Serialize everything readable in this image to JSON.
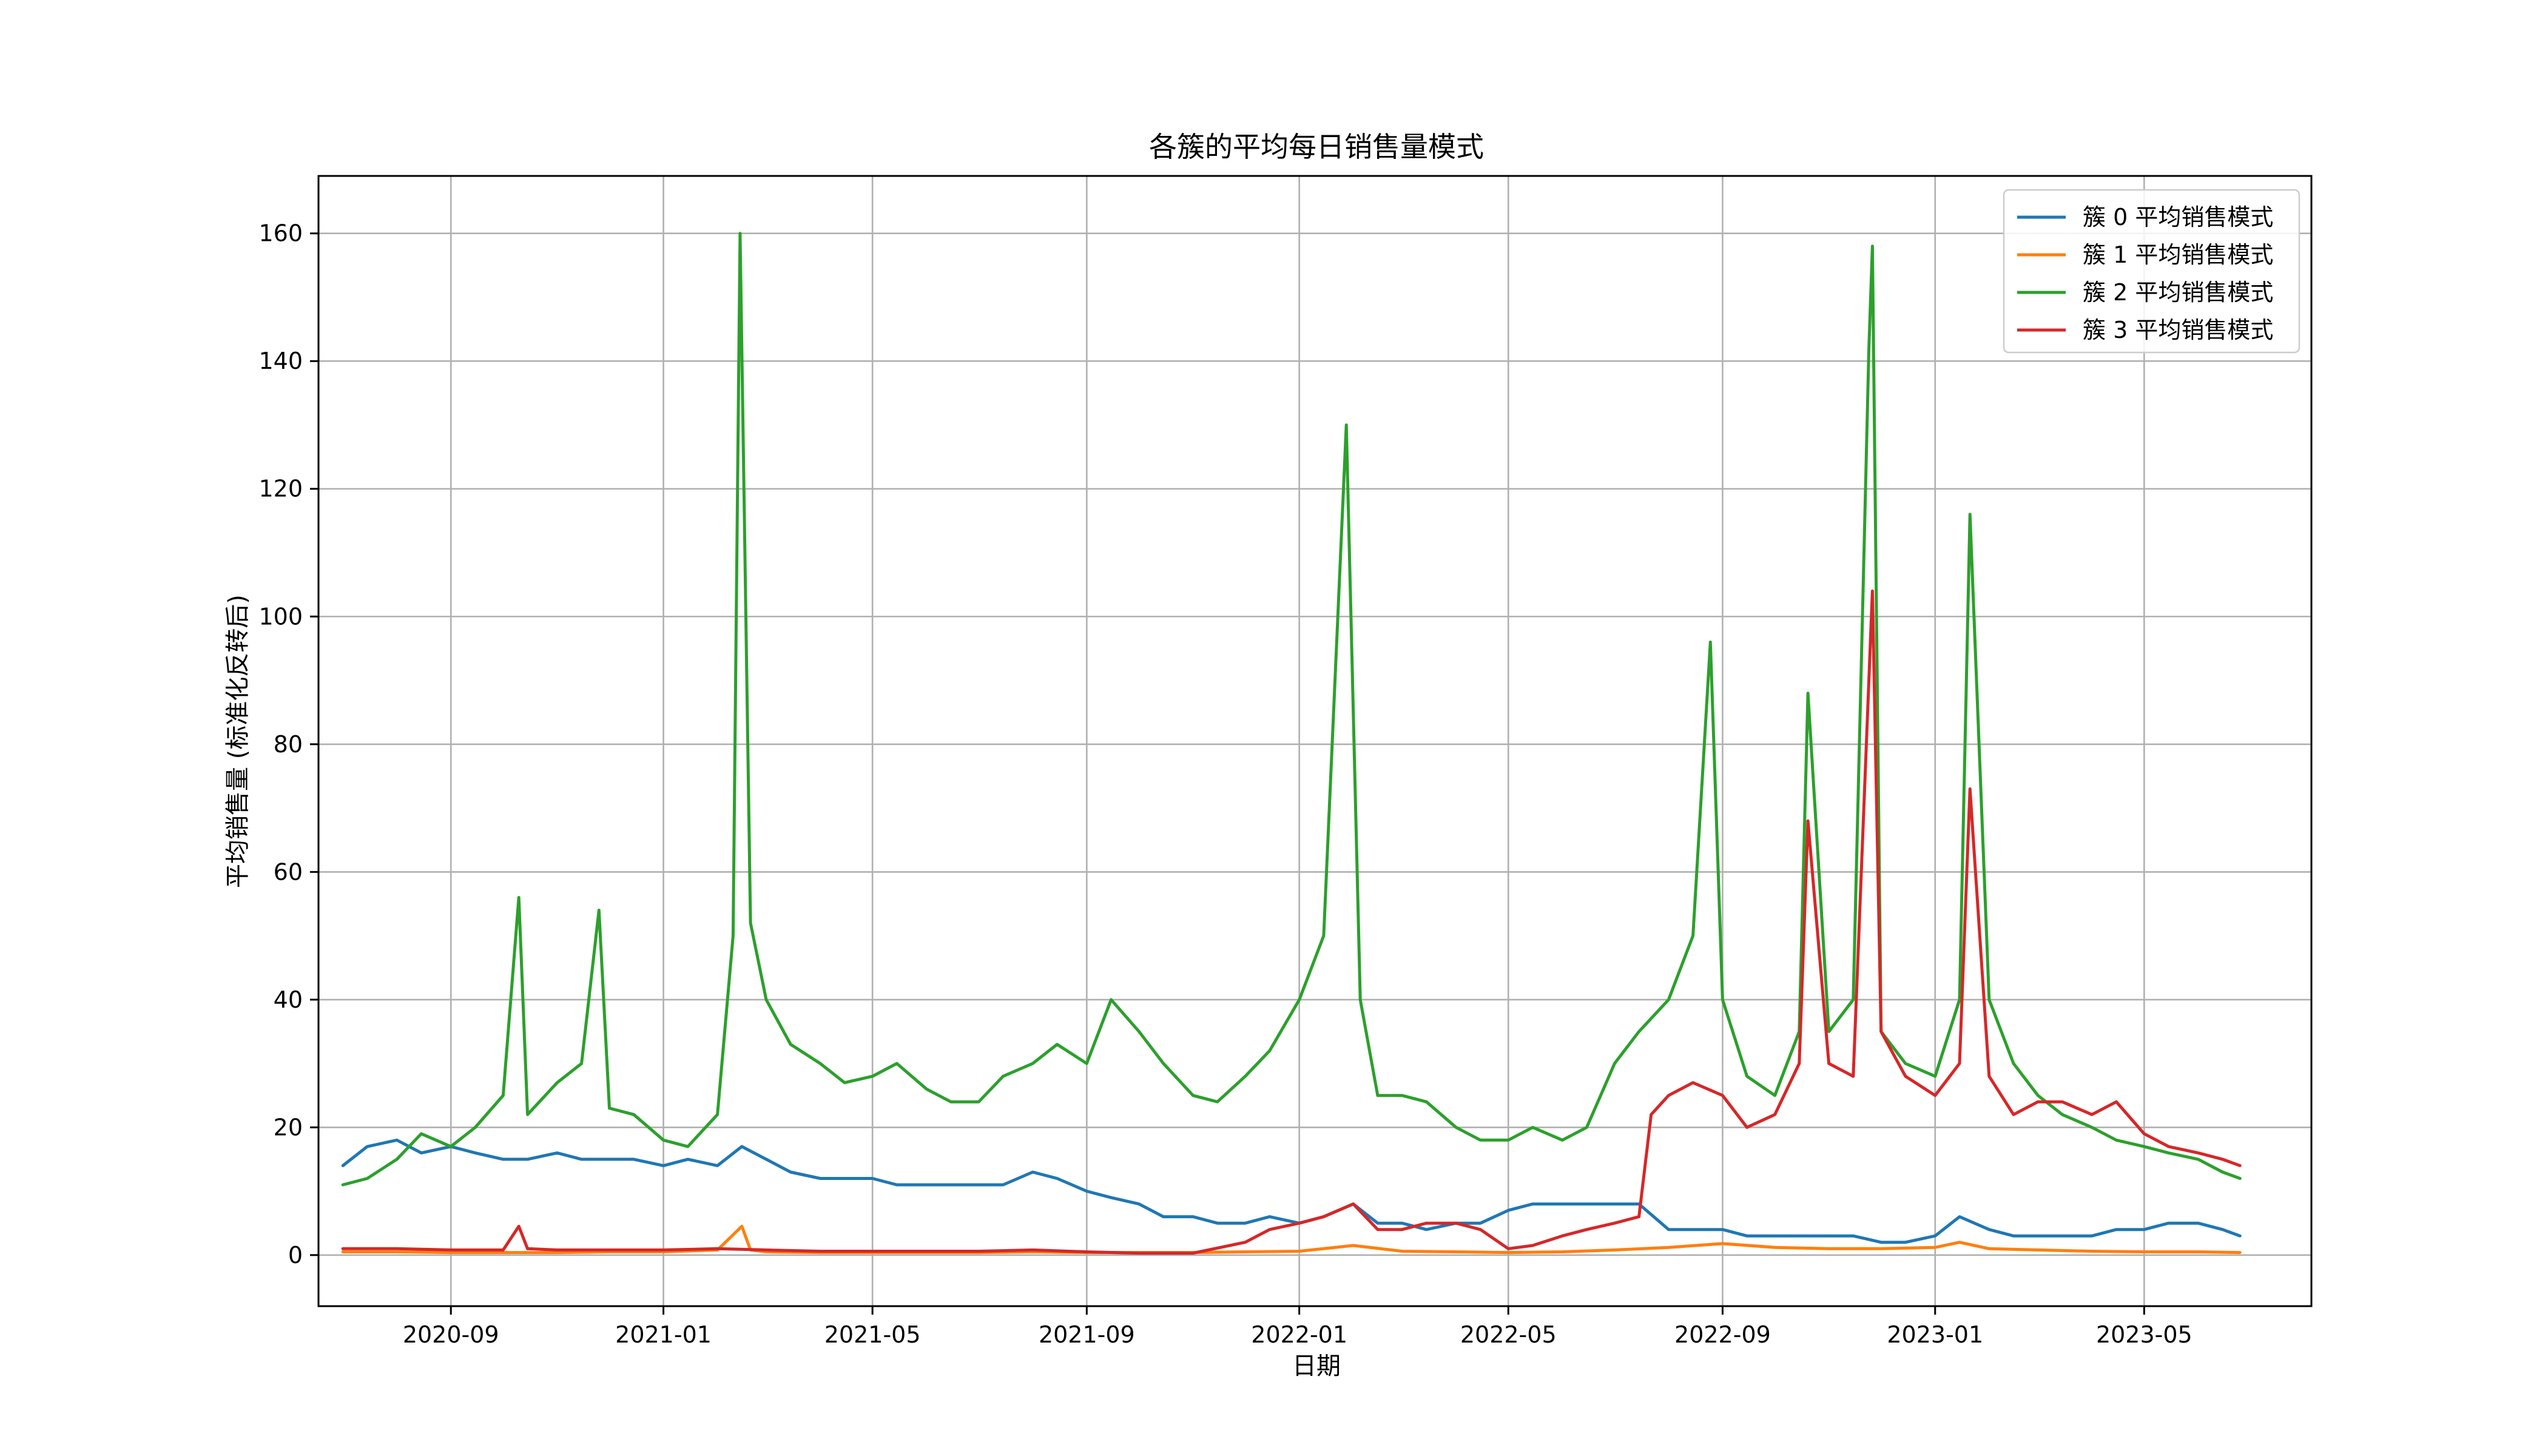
{
  "chart_data": {
    "type": "line",
    "title": "各簇的平均每日销售量模式",
    "xlabel": "日期",
    "ylabel": "平均销售量 (标准化反转后)",
    "x_range": [
      "2020-06-17",
      "2023-08-05"
    ],
    "ylim": [
      -8,
      169
    ],
    "x_ticks": [
      "2020-09",
      "2021-01",
      "2021-05",
      "2021-09",
      "2022-01",
      "2022-05",
      "2022-09",
      "2023-01",
      "2023-05"
    ],
    "x_tick_dates": [
      "2020-09-01",
      "2021-01-01",
      "2021-05-01",
      "2021-09-01",
      "2022-01-01",
      "2022-05-01",
      "2022-09-01",
      "2023-01-01",
      "2023-05-01"
    ],
    "y_ticks": [
      0,
      20,
      40,
      60,
      80,
      100,
      120,
      140,
      160
    ],
    "grid": true,
    "legend_position": "top-right",
    "series": [
      {
        "name": "簇 0 平均销售模式",
        "color": "#1f77b4",
        "points": [
          [
            "2020-07-01",
            14
          ],
          [
            "2020-07-15",
            17
          ],
          [
            "2020-08-01",
            18
          ],
          [
            "2020-08-15",
            16
          ],
          [
            "2020-09-01",
            17
          ],
          [
            "2020-09-15",
            16
          ],
          [
            "2020-10-01",
            15
          ],
          [
            "2020-10-15",
            15
          ],
          [
            "2020-11-01",
            16
          ],
          [
            "2020-11-15",
            15
          ],
          [
            "2020-12-01",
            15
          ],
          [
            "2020-12-15",
            15
          ],
          [
            "2021-01-01",
            14
          ],
          [
            "2021-01-15",
            15
          ],
          [
            "2021-02-01",
            14
          ],
          [
            "2021-02-15",
            17
          ],
          [
            "2021-03-01",
            15
          ],
          [
            "2021-03-15",
            13
          ],
          [
            "2021-04-01",
            12
          ],
          [
            "2021-04-15",
            12
          ],
          [
            "2021-05-01",
            12
          ],
          [
            "2021-05-15",
            11
          ],
          [
            "2021-06-01",
            11
          ],
          [
            "2021-06-15",
            11
          ],
          [
            "2021-07-01",
            11
          ],
          [
            "2021-07-15",
            11
          ],
          [
            "2021-08-01",
            13
          ],
          [
            "2021-08-15",
            12
          ],
          [
            "2021-09-01",
            10
          ],
          [
            "2021-09-15",
            9
          ],
          [
            "2021-10-01",
            8
          ],
          [
            "2021-10-15",
            6
          ],
          [
            "2021-11-01",
            6
          ],
          [
            "2021-11-15",
            5
          ],
          [
            "2021-12-01",
            5
          ],
          [
            "2021-12-15",
            6
          ],
          [
            "2022-01-01",
            5
          ],
          [
            "2022-01-15",
            6
          ],
          [
            "2022-02-01",
            8
          ],
          [
            "2022-02-15",
            5
          ],
          [
            "2022-03-01",
            5
          ],
          [
            "2022-03-15",
            4
          ],
          [
            "2022-04-01",
            5
          ],
          [
            "2022-04-15",
            5
          ],
          [
            "2022-05-01",
            7
          ],
          [
            "2022-05-15",
            8
          ],
          [
            "2022-06-01",
            8
          ],
          [
            "2022-06-15",
            8
          ],
          [
            "2022-07-01",
            8
          ],
          [
            "2022-07-15",
            8
          ],
          [
            "2022-08-01",
            4
          ],
          [
            "2022-08-15",
            4
          ],
          [
            "2022-09-01",
            4
          ],
          [
            "2022-09-15",
            3
          ],
          [
            "2022-10-01",
            3
          ],
          [
            "2022-10-15",
            3
          ],
          [
            "2022-11-01",
            3
          ],
          [
            "2022-11-15",
            3
          ],
          [
            "2022-12-01",
            2
          ],
          [
            "2022-12-15",
            2
          ],
          [
            "2023-01-01",
            3
          ],
          [
            "2023-01-15",
            6
          ],
          [
            "2023-02-01",
            4
          ],
          [
            "2023-02-15",
            3
          ],
          [
            "2023-03-01",
            3
          ],
          [
            "2023-03-15",
            3
          ],
          [
            "2023-04-01",
            3
          ],
          [
            "2023-04-15",
            4
          ],
          [
            "2023-05-01",
            4
          ],
          [
            "2023-05-15",
            5
          ],
          [
            "2023-06-01",
            5
          ],
          [
            "2023-06-15",
            4
          ],
          [
            "2023-06-25",
            3
          ]
        ]
      },
      {
        "name": "簇 1 平均销售模式",
        "color": "#ff7f0e",
        "points": [
          [
            "2020-07-01",
            0.5
          ],
          [
            "2020-08-01",
            0.5
          ],
          [
            "2020-09-01",
            0.4
          ],
          [
            "2020-10-01",
            0.4
          ],
          [
            "2020-11-01",
            0.4
          ],
          [
            "2020-12-01",
            0.5
          ],
          [
            "2021-01-01",
            0.5
          ],
          [
            "2021-02-01",
            0.8
          ],
          [
            "2021-02-15",
            4.5
          ],
          [
            "2021-02-20",
            0.8
          ],
          [
            "2021-03-01",
            0.5
          ],
          [
            "2021-04-01",
            0.4
          ],
          [
            "2021-05-01",
            0.4
          ],
          [
            "2021-06-01",
            0.4
          ],
          [
            "2021-07-01",
            0.4
          ],
          [
            "2021-08-01",
            0.5
          ],
          [
            "2021-09-01",
            0.4
          ],
          [
            "2021-10-01",
            0.4
          ],
          [
            "2021-11-01",
            0.4
          ],
          [
            "2021-12-01",
            0.5
          ],
          [
            "2022-01-01",
            0.6
          ],
          [
            "2022-02-01",
            1.5
          ],
          [
            "2022-03-01",
            0.6
          ],
          [
            "2022-04-01",
            0.5
          ],
          [
            "2022-05-01",
            0.4
          ],
          [
            "2022-06-01",
            0.5
          ],
          [
            "2022-07-01",
            0.8
          ],
          [
            "2022-08-01",
            1.2
          ],
          [
            "2022-09-01",
            1.8
          ],
          [
            "2022-10-01",
            1.2
          ],
          [
            "2022-11-01",
            1.0
          ],
          [
            "2022-12-01",
            1.0
          ],
          [
            "2023-01-01",
            1.2
          ],
          [
            "2023-01-15",
            2.0
          ],
          [
            "2023-02-01",
            1.0
          ],
          [
            "2023-03-01",
            0.8
          ],
          [
            "2023-04-01",
            0.6
          ],
          [
            "2023-05-01",
            0.5
          ],
          [
            "2023-06-01",
            0.5
          ],
          [
            "2023-06-25",
            0.4
          ]
        ]
      },
      {
        "name": "簇 2 平均销售模式",
        "color": "#2ca02c",
        "points": [
          [
            "2020-07-01",
            11
          ],
          [
            "2020-07-15",
            12
          ],
          [
            "2020-08-01",
            15
          ],
          [
            "2020-08-15",
            19
          ],
          [
            "2020-09-01",
            17
          ],
          [
            "2020-09-15",
            20
          ],
          [
            "2020-10-01",
            25
          ],
          [
            "2020-10-10",
            56
          ],
          [
            "2020-10-15",
            22
          ],
          [
            "2020-11-01",
            27
          ],
          [
            "2020-11-15",
            30
          ],
          [
            "2020-11-25",
            54
          ],
          [
            "2020-12-01",
            23
          ],
          [
            "2020-12-15",
            22
          ],
          [
            "2021-01-01",
            18
          ],
          [
            "2021-01-15",
            17
          ],
          [
            "2021-02-01",
            22
          ],
          [
            "2021-02-10",
            50
          ],
          [
            "2021-02-14",
            160
          ],
          [
            "2021-02-20",
            52
          ],
          [
            "2021-03-01",
            40
          ],
          [
            "2021-03-15",
            33
          ],
          [
            "2021-04-01",
            30
          ],
          [
            "2021-04-15",
            27
          ],
          [
            "2021-05-01",
            28
          ],
          [
            "2021-05-15",
            30
          ],
          [
            "2021-06-01",
            26
          ],
          [
            "2021-06-15",
            24
          ],
          [
            "2021-07-01",
            24
          ],
          [
            "2021-07-15",
            28
          ],
          [
            "2021-08-01",
            30
          ],
          [
            "2021-08-15",
            33
          ],
          [
            "2021-09-01",
            30
          ],
          [
            "2021-09-15",
            40
          ],
          [
            "2021-10-01",
            35
          ],
          [
            "2021-10-15",
            30
          ],
          [
            "2021-11-01",
            25
          ],
          [
            "2021-11-15",
            24
          ],
          [
            "2021-12-01",
            28
          ],
          [
            "2021-12-15",
            32
          ],
          [
            "2022-01-01",
            40
          ],
          [
            "2022-01-15",
            50
          ],
          [
            "2022-01-28",
            130
          ],
          [
            "2022-02-05",
            40
          ],
          [
            "2022-02-15",
            25
          ],
          [
            "2022-03-01",
            25
          ],
          [
            "2022-03-15",
            24
          ],
          [
            "2022-04-01",
            20
          ],
          [
            "2022-04-15",
            18
          ],
          [
            "2022-05-01",
            18
          ],
          [
            "2022-05-15",
            20
          ],
          [
            "2022-06-01",
            18
          ],
          [
            "2022-06-15",
            20
          ],
          [
            "2022-07-01",
            30
          ],
          [
            "2022-07-15",
            35
          ],
          [
            "2022-08-01",
            40
          ],
          [
            "2022-08-15",
            50
          ],
          [
            "2022-08-25",
            96
          ],
          [
            "2022-09-01",
            40
          ],
          [
            "2022-09-15",
            28
          ],
          [
            "2022-10-01",
            25
          ],
          [
            "2022-10-15",
            35
          ],
          [
            "2022-10-20",
            88
          ],
          [
            "2022-11-01",
            35
          ],
          [
            "2022-11-15",
            40
          ],
          [
            "2022-11-24",
            142
          ],
          [
            "2022-11-26",
            158
          ],
          [
            "2022-12-01",
            35
          ],
          [
            "2022-12-15",
            30
          ],
          [
            "2023-01-01",
            28
          ],
          [
            "2023-01-15",
            40
          ],
          [
            "2023-01-21",
            116
          ],
          [
            "2023-02-01",
            40
          ],
          [
            "2023-02-15",
            30
          ],
          [
            "2023-03-01",
            25
          ],
          [
            "2023-03-15",
            22
          ],
          [
            "2023-04-01",
            20
          ],
          [
            "2023-04-15",
            18
          ],
          [
            "2023-05-01",
            17
          ],
          [
            "2023-05-15",
            16
          ],
          [
            "2023-06-01",
            15
          ],
          [
            "2023-06-15",
            13
          ],
          [
            "2023-06-25",
            12
          ]
        ]
      },
      {
        "name": "簇 3 平均销售模式",
        "color": "#d62728",
        "points": [
          [
            "2020-07-01",
            1
          ],
          [
            "2020-08-01",
            1
          ],
          [
            "2020-09-01",
            0.8
          ],
          [
            "2020-10-01",
            0.8
          ],
          [
            "2020-10-10",
            4.5
          ],
          [
            "2020-10-15",
            1
          ],
          [
            "2020-11-01",
            0.8
          ],
          [
            "2020-12-01",
            0.8
          ],
          [
            "2021-01-01",
            0.8
          ],
          [
            "2021-02-01",
            1
          ],
          [
            "2021-03-01",
            0.8
          ],
          [
            "2021-04-01",
            0.6
          ],
          [
            "2021-05-01",
            0.6
          ],
          [
            "2021-06-01",
            0.6
          ],
          [
            "2021-07-01",
            0.6
          ],
          [
            "2021-08-01",
            0.8
          ],
          [
            "2021-09-01",
            0.5
          ],
          [
            "2021-10-01",
            0.3
          ],
          [
            "2021-11-01",
            0.3
          ],
          [
            "2021-12-01",
            2
          ],
          [
            "2021-12-15",
            4
          ],
          [
            "2022-01-01",
            5
          ],
          [
            "2022-01-15",
            6
          ],
          [
            "2022-02-01",
            8
          ],
          [
            "2022-02-15",
            4
          ],
          [
            "2022-03-01",
            4
          ],
          [
            "2022-03-15",
            5
          ],
          [
            "2022-04-01",
            5
          ],
          [
            "2022-04-15",
            4
          ],
          [
            "2022-05-01",
            1
          ],
          [
            "2022-05-15",
            1.5
          ],
          [
            "2022-06-01",
            3
          ],
          [
            "2022-06-15",
            4
          ],
          [
            "2022-07-01",
            5
          ],
          [
            "2022-07-15",
            6
          ],
          [
            "2022-07-22",
            22
          ],
          [
            "2022-08-01",
            25
          ],
          [
            "2022-08-15",
            27
          ],
          [
            "2022-09-01",
            25
          ],
          [
            "2022-09-15",
            20
          ],
          [
            "2022-10-01",
            22
          ],
          [
            "2022-10-15",
            30
          ],
          [
            "2022-10-20",
            68
          ],
          [
            "2022-11-01",
            30
          ],
          [
            "2022-11-15",
            28
          ],
          [
            "2022-11-26",
            104
          ],
          [
            "2022-12-01",
            35
          ],
          [
            "2022-12-15",
            28
          ],
          [
            "2023-01-01",
            25
          ],
          [
            "2023-01-15",
            30
          ],
          [
            "2023-01-21",
            73
          ],
          [
            "2023-02-01",
            28
          ],
          [
            "2023-02-15",
            22
          ],
          [
            "2023-03-01",
            24
          ],
          [
            "2023-03-15",
            24
          ],
          [
            "2023-04-01",
            22
          ],
          [
            "2023-04-15",
            24
          ],
          [
            "2023-05-01",
            19
          ],
          [
            "2023-05-15",
            17
          ],
          [
            "2023-06-01",
            16
          ],
          [
            "2023-06-15",
            15
          ],
          [
            "2023-06-25",
            14
          ]
        ]
      }
    ]
  }
}
